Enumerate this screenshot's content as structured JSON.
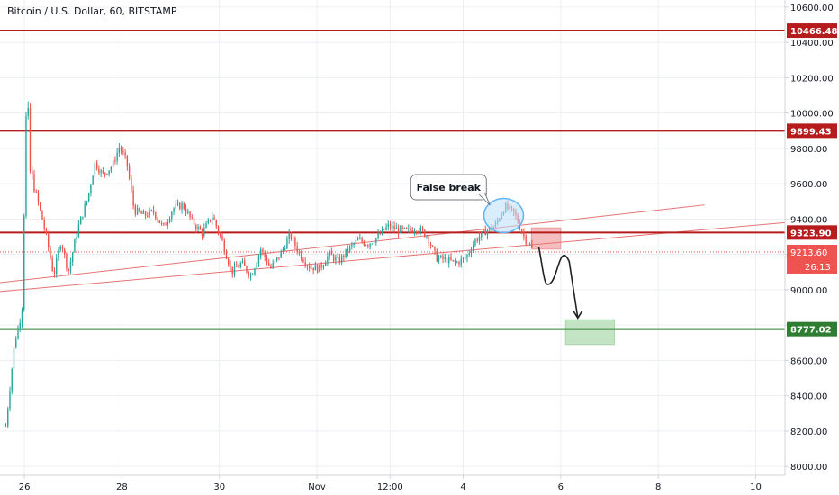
{
  "chart_data": {
    "type": "candlestick",
    "title": "Bitcoin / U.S. Dollar, 60, BITSTAMP",
    "ylim": [
      7950,
      10640
    ],
    "y_ticks": [
      8000,
      8200,
      8400,
      8600,
      8800,
      9000,
      9200,
      9400,
      9600,
      9800,
      10000,
      10200,
      10400,
      10600
    ],
    "y_tick_labels": [
      "8000.00",
      "8200.00",
      "8400.00",
      "8600.00",
      "8800.00",
      "9000.00",
      "9200.00",
      "9400.00",
      "9600.00",
      "9800.00",
      "10000.00",
      "10200.00",
      "10400.00",
      "10600.00"
    ],
    "x_ticks": [
      "26",
      "28",
      "30",
      "Nov",
      "12:00",
      "4",
      "6",
      "8",
      "10"
    ],
    "x_tick_positions": [
      1.0,
      3.0,
      5.0,
      7.0,
      8.5,
      10.0,
      12.0,
      14.0,
      16.0
    ],
    "xlim": [
      0.5,
      16.6
    ],
    "price_path": [
      [
        0.62,
        8230
      ],
      [
        0.8,
        8700
      ],
      [
        0.95,
        8880
      ],
      [
        1.05,
        10150
      ],
      [
        1.12,
        9650
      ],
      [
        1.25,
        9530
      ],
      [
        1.45,
        9300
      ],
      [
        1.6,
        9080
      ],
      [
        1.75,
        9280
      ],
      [
        1.9,
        9100
      ],
      [
        2.1,
        9350
      ],
      [
        2.3,
        9520
      ],
      [
        2.45,
        9720
      ],
      [
        2.6,
        9650
      ],
      [
        2.8,
        9700
      ],
      [
        2.95,
        9810
      ],
      [
        3.1,
        9720
      ],
      [
        3.25,
        9450
      ],
      [
        3.45,
        9420
      ],
      [
        3.65,
        9440
      ],
      [
        3.85,
        9350
      ],
      [
        4.05,
        9460
      ],
      [
        4.25,
        9480
      ],
      [
        4.45,
        9380
      ],
      [
        4.65,
        9320
      ],
      [
        4.85,
        9420
      ],
      [
        5.05,
        9280
      ],
      [
        5.25,
        9100
      ],
      [
        5.45,
        9150
      ],
      [
        5.65,
        9080
      ],
      [
        5.85,
        9230
      ],
      [
        6.05,
        9120
      ],
      [
        6.25,
        9200
      ],
      [
        6.45,
        9310
      ],
      [
        6.65,
        9200
      ],
      [
        6.85,
        9130
      ],
      [
        7.05,
        9120
      ],
      [
        7.25,
        9200
      ],
      [
        7.45,
        9160
      ],
      [
        7.65,
        9230
      ],
      [
        7.85,
        9280
      ],
      [
        8.05,
        9260
      ],
      [
        8.25,
        9300
      ],
      [
        8.45,
        9360
      ],
      [
        8.65,
        9340
      ],
      [
        8.85,
        9330
      ],
      [
        9.05,
        9350
      ],
      [
        9.25,
        9310
      ],
      [
        9.45,
        9180
      ],
      [
        9.65,
        9170
      ],
      [
        9.85,
        9150
      ],
      [
        10.05,
        9180
      ],
      [
        10.25,
        9280
      ],
      [
        10.45,
        9330
      ],
      [
        10.65,
        9360
      ],
      [
        10.85,
        9470
      ],
      [
        11.05,
        9430
      ],
      [
        11.25,
        9300
      ],
      [
        11.45,
        9213
      ]
    ],
    "horizontal_levels": [
      {
        "value": 10466.48,
        "label": "10466.48",
        "color": "#b71c1c"
      },
      {
        "value": 9899.43,
        "label": "9899.43",
        "color": "#b71c1c"
      },
      {
        "value": 9323.9,
        "label": "9323.90",
        "color": "#b71c1c"
      },
      {
        "value": 8777.02,
        "label": "8777.02",
        "color": "#2e7d32"
      }
    ],
    "current_price": {
      "value": 9213.6,
      "label": "9213.60",
      "countdown": "26:13",
      "color": "#ef5350"
    },
    "trendlines": [
      {
        "x0": 0.5,
        "y0": 8990,
        "x1": 16.6,
        "y1": 9380,
        "color": "#e57373"
      },
      {
        "x0": 0.5,
        "y0": 9040,
        "x1": 14.95,
        "y1": 9480,
        "color": "#e57373"
      }
    ],
    "annotations": [
      {
        "type": "callout",
        "text": "False break",
        "x": 9.7,
        "y": 9580
      },
      {
        "type": "ellipse",
        "x": 10.83,
        "y": 9420,
        "color": "#64b5f6"
      },
      {
        "type": "zone",
        "x0": 11.4,
        "x1": 12.0,
        "y0": 9230,
        "y1": 9350,
        "color": "#ef9a9a"
      },
      {
        "type": "zone",
        "x0": 12.1,
        "x1": 13.1,
        "y0": 8690,
        "y1": 8830,
        "color": "#a5d6a7"
      },
      {
        "type": "arrow_path",
        "points": [
          [
            11.55,
            9240
          ],
          [
            11.8,
            9040
          ],
          [
            12.1,
            9160
          ],
          [
            12.35,
            8840
          ]
        ],
        "color": "#212121"
      }
    ],
    "grid": true
  },
  "colors": {
    "up": "#26a69a",
    "down": "#ef5350",
    "grid": "#eceff3",
    "axis_text": "#131722",
    "axis_border": "#d1d4dc"
  }
}
